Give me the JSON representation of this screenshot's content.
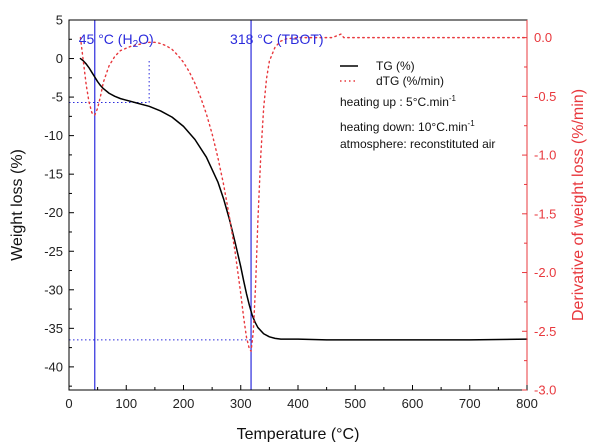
{
  "chart_data": {
    "type": "line",
    "xlabel": "Temperature (°C)",
    "ylabel": "Weight loss (%)",
    "y2label": "Derivative of weight loss (%/min)",
    "xlim": [
      0,
      800
    ],
    "ylim": [
      -43,
      5
    ],
    "y2lim": [
      -3.0,
      0.15
    ],
    "x_ticks": [
      0,
      100,
      200,
      300,
      400,
      500,
      600,
      700,
      800
    ],
    "y_ticks": [
      5,
      0,
      -5,
      -10,
      -15,
      -20,
      -25,
      -30,
      -35,
      -40
    ],
    "y2_ticks": [
      0.0,
      -0.5,
      -1.0,
      -1.5,
      -2.0,
      -2.5,
      -3.0
    ],
    "grid": false,
    "legend_placement": "top-right",
    "colors": {
      "tg": "#000000",
      "dtg": "#e8383d",
      "guide": "#2b2bdc"
    },
    "series": [
      {
        "name": "TG (%)",
        "axis": "left",
        "style": "solid",
        "x": [
          20,
          25,
          30,
          35,
          40,
          45,
          50,
          55,
          60,
          70,
          80,
          90,
          100,
          120,
          140,
          160,
          180,
          200,
          220,
          240,
          260,
          270,
          280,
          290,
          300,
          305,
          310,
          315,
          320,
          325,
          330,
          340,
          350,
          360,
          370,
          380,
          390,
          400,
          450,
          500,
          600,
          700,
          800
        ],
        "y": [
          0,
          -0.3,
          -0.7,
          -1.2,
          -1.8,
          -2.4,
          -3.0,
          -3.5,
          -3.9,
          -4.5,
          -4.9,
          -5.2,
          -5.4,
          -5.8,
          -6.2,
          -6.8,
          -7.6,
          -8.8,
          -10.5,
          -12.8,
          -16.0,
          -18.2,
          -20.8,
          -23.8,
          -27.0,
          -28.8,
          -30.5,
          -32.0,
          -33.3,
          -34.2,
          -34.9,
          -35.7,
          -36.1,
          -36.3,
          -36.4,
          -36.4,
          -36.4,
          -36.4,
          -36.5,
          -36.5,
          -36.5,
          -36.5,
          -36.4
        ]
      },
      {
        "name": "dTG (%/min)",
        "axis": "right",
        "style": "dotted",
        "x": [
          20,
          25,
          30,
          35,
          40,
          45,
          50,
          55,
          60,
          70,
          80,
          90,
          100,
          110,
          120,
          130,
          140,
          150,
          160,
          170,
          180,
          190,
          200,
          210,
          220,
          230,
          240,
          250,
          260,
          270,
          280,
          290,
          300,
          305,
          310,
          315,
          318,
          322,
          326,
          330,
          335,
          340,
          345,
          350,
          360,
          370,
          380,
          400,
          430,
          460,
          470,
          475,
          480,
          490,
          500,
          550,
          600,
          700,
          800
        ],
        "y": [
          0.0,
          -0.2,
          -0.4,
          -0.55,
          -0.64,
          -0.66,
          -0.6,
          -0.5,
          -0.38,
          -0.24,
          -0.16,
          -0.11,
          -0.09,
          -0.07,
          -0.06,
          -0.05,
          -0.04,
          -0.04,
          -0.05,
          -0.07,
          -0.1,
          -0.15,
          -0.21,
          -0.29,
          -0.39,
          -0.51,
          -0.65,
          -0.82,
          -1.02,
          -1.25,
          -1.52,
          -1.82,
          -2.18,
          -2.38,
          -2.55,
          -2.65,
          -2.67,
          -2.5,
          -2.1,
          -1.55,
          -1.0,
          -0.6,
          -0.35,
          -0.2,
          -0.08,
          -0.03,
          -0.01,
          0.0,
          0.0,
          0.0,
          0.02,
          0.03,
          0.0,
          0.0,
          0.0,
          0.0,
          0.0,
          0.0,
          0.0
        ]
      }
    ],
    "annotations": [
      {
        "label": "45 °C (H",
        "sub": "2",
        "label_end": "O)",
        "x": 45
      },
      {
        "label": "318 °C (TBOT)",
        "sub": "",
        "label_end": "",
        "x": 318
      }
    ],
    "guides": [
      {
        "axis": "left",
        "y": -5.7,
        "x_from": 0,
        "x_to": 140
      },
      {
        "axis": "left",
        "y": -36.5,
        "x_from": 0,
        "x_to": 318
      },
      {
        "axis": "left",
        "x": 140,
        "y_from": -5.7,
        "y_to": 0
      }
    ],
    "notes": [
      {
        "text": "heating up : 5°C.min",
        "sup": "-1"
      },
      {
        "text": "heating down: 10°C.min",
        "sup": "-1"
      },
      {
        "text": "atmosphere: reconstituted air",
        "sup": ""
      }
    ]
  }
}
